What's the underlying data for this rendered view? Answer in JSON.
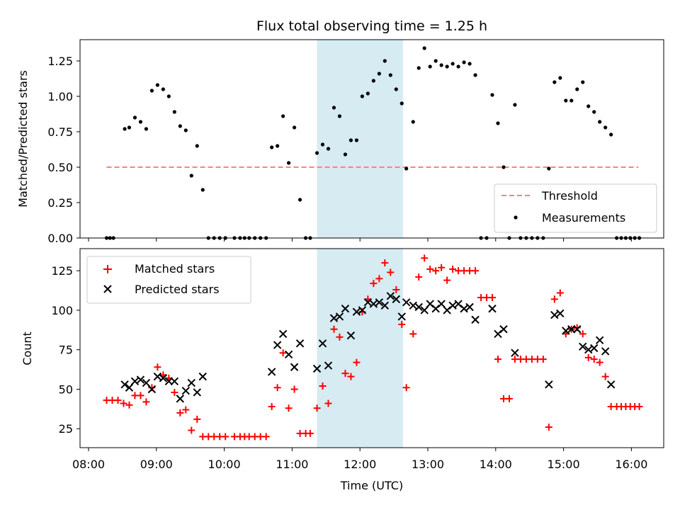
{
  "chart_data": {
    "type": "scatter",
    "title": "Flux total observing time = 1.25 h",
    "xlabel": "Time (UTC)",
    "shaded_interval": [
      "11:22",
      "12:38"
    ],
    "x_ticks": [
      "08:00",
      "09:00",
      "10:00",
      "11:00",
      "12:00",
      "13:00",
      "14:00",
      "15:00",
      "16:00"
    ],
    "top": {
      "ylabel": "Matched/Predicted stars",
      "ylim": [
        0,
        1.4
      ],
      "yticks": [
        "0.00",
        "0.25",
        "0.50",
        "0.75",
        "1.00",
        "1.25"
      ],
      "threshold": {
        "name": "Threshold",
        "value": 0.5,
        "x": [
          "08:16",
          "16:06"
        ]
      },
      "legend": [
        "Threshold",
        "Measurements"
      ],
      "legend_loc": "lower-right",
      "series": [
        {
          "name": "Measurements",
          "points": [
            [
              "08:16",
              0
            ],
            [
              "08:19",
              0
            ],
            [
              "08:22",
              0
            ],
            [
              "08:32",
              0.77
            ],
            [
              "08:36",
              0.78
            ],
            [
              "08:41",
              0.85
            ],
            [
              "08:46",
              0.82
            ],
            [
              "08:51",
              0.77
            ],
            [
              "08:56",
              1.04
            ],
            [
              "09:01",
              1.08
            ],
            [
              "09:06",
              1.05
            ],
            [
              "09:11",
              1.0
            ],
            [
              "09:16",
              0.89
            ],
            [
              "09:21",
              0.79
            ],
            [
              "09:26",
              0.76
            ],
            [
              "09:31",
              0.44
            ],
            [
              "09:36",
              0.65
            ],
            [
              "09:41",
              0.34
            ],
            [
              "09:46",
              0
            ],
            [
              "09:51",
              0
            ],
            [
              "09:56",
              0
            ],
            [
              "10:01",
              0
            ],
            [
              "10:09",
              0
            ],
            [
              "10:14",
              0
            ],
            [
              "10:18",
              0
            ],
            [
              "10:22",
              0
            ],
            [
              "10:27",
              0
            ],
            [
              "10:32",
              0
            ],
            [
              "10:37",
              0
            ],
            [
              "10:42",
              0.64
            ],
            [
              "10:47",
              0.65
            ],
            [
              "10:52",
              0.86
            ],
            [
              "10:57",
              0.53
            ],
            [
              "11:02",
              0.78
            ],
            [
              "11:07",
              0.27
            ],
            [
              "11:12",
              0
            ],
            [
              "11:16",
              0
            ],
            [
              "11:22",
              0.6
            ],
            [
              "11:27",
              0.66
            ],
            [
              "11:32",
              0.63
            ],
            [
              "11:37",
              0.92
            ],
            [
              "11:42",
              0.86
            ],
            [
              "11:47",
              0.59
            ],
            [
              "11:52",
              0.69
            ],
            [
              "11:57",
              0.69
            ],
            [
              "12:02",
              1.0
            ],
            [
              "12:07",
              1.02
            ],
            [
              "12:12",
              1.11
            ],
            [
              "12:17",
              1.16
            ],
            [
              "12:22",
              1.25
            ],
            [
              "12:27",
              1.15
            ],
            [
              "12:32",
              1.05
            ],
            [
              "12:37",
              0.95
            ],
            [
              "12:41",
              0.49
            ],
            [
              "12:47",
              0.82
            ],
            [
              "12:52",
              1.2
            ],
            [
              "12:57",
              1.34
            ],
            [
              "13:02",
              1.21
            ],
            [
              "13:07",
              1.25
            ],
            [
              "13:12",
              1.22
            ],
            [
              "13:17",
              1.21
            ],
            [
              "13:22",
              1.23
            ],
            [
              "13:27",
              1.21
            ],
            [
              "13:32",
              1.24
            ],
            [
              "13:37",
              1.23
            ],
            [
              "13:42",
              1.15
            ],
            [
              "13:47",
              0
            ],
            [
              "13:52",
              0
            ],
            [
              "13:57",
              1.01
            ],
            [
              "14:02",
              0.81
            ],
            [
              "14:07",
              0.5
            ],
            [
              "14:12",
              0
            ],
            [
              "14:17",
              0.94
            ],
            [
              "14:22",
              0
            ],
            [
              "14:27",
              0
            ],
            [
              "14:32",
              0
            ],
            [
              "14:37",
              0
            ],
            [
              "14:42",
              0
            ],
            [
              "14:47",
              0.49
            ],
            [
              "14:52",
              1.1
            ],
            [
              "14:57",
              1.13
            ],
            [
              "15:02",
              0.97
            ],
            [
              "15:07",
              0.97
            ],
            [
              "15:12",
              1.05
            ],
            [
              "15:17",
              1.1
            ],
            [
              "15:22",
              0.93
            ],
            [
              "15:27",
              0.89
            ],
            [
              "15:32",
              0.82
            ],
            [
              "15:37",
              0.78
            ],
            [
              "15:42",
              0.73
            ],
            [
              "15:47",
              0
            ],
            [
              "15:51",
              0
            ],
            [
              "15:55",
              0
            ],
            [
              "15:59",
              0
            ],
            [
              "16:03",
              0
            ],
            [
              "16:07",
              0
            ]
          ]
        }
      ]
    },
    "bottom": {
      "ylabel": "Count",
      "ylim": [
        13,
        139
      ],
      "yticks": [
        "25",
        "50",
        "75",
        "100",
        "125"
      ],
      "legend": [
        "Matched stars",
        "Predicted stars"
      ],
      "legend_loc": "upper-left",
      "series": [
        {
          "name": "Matched stars",
          "points": [
            [
              "08:16",
              43
            ],
            [
              "08:21",
              43
            ],
            [
              "08:26",
              43
            ],
            [
              "08:31",
              41
            ],
            [
              "08:36",
              40
            ],
            [
              "08:41",
              46
            ],
            [
              "08:46",
              46
            ],
            [
              "08:51",
              42
            ],
            [
              "08:56",
              51
            ],
            [
              "09:01",
              64
            ],
            [
              "09:06",
              59
            ],
            [
              "09:11",
              57
            ],
            [
              "09:16",
              48
            ],
            [
              "09:21",
              35
            ],
            [
              "09:26",
              37
            ],
            [
              "09:31",
              24
            ],
            [
              "09:36",
              31
            ],
            [
              "09:41",
              20
            ],
            [
              "09:46",
              20
            ],
            [
              "09:51",
              20
            ],
            [
              "09:56",
              20
            ],
            [
              "10:01",
              20
            ],
            [
              "10:09",
              20
            ],
            [
              "10:14",
              20
            ],
            [
              "10:18",
              20
            ],
            [
              "10:22",
              20
            ],
            [
              "10:27",
              20
            ],
            [
              "10:32",
              20
            ],
            [
              "10:37",
              20
            ],
            [
              "10:42",
              39
            ],
            [
              "10:47",
              51
            ],
            [
              "10:52",
              73
            ],
            [
              "10:57",
              38
            ],
            [
              "11:02",
              50
            ],
            [
              "11:07",
              22
            ],
            [
              "11:12",
              22
            ],
            [
              "11:16",
              22
            ],
            [
              "11:22",
              38
            ],
            [
              "11:27",
              52
            ],
            [
              "11:32",
              41
            ],
            [
              "11:37",
              88
            ],
            [
              "11:42",
              83
            ],
            [
              "11:47",
              60
            ],
            [
              "11:52",
              58
            ],
            [
              "11:57",
              67
            ],
            [
              "12:02",
              99
            ],
            [
              "12:07",
              107
            ],
            [
              "12:12",
              117
            ],
            [
              "12:17",
              120
            ],
            [
              "12:22",
              130
            ],
            [
              "12:27",
              124
            ],
            [
              "12:32",
              113
            ],
            [
              "12:37",
              91
            ],
            [
              "12:41",
              51
            ],
            [
              "12:47",
              85
            ],
            [
              "12:52",
              121
            ],
            [
              "12:57",
              133
            ],
            [
              "13:02",
              126
            ],
            [
              "13:07",
              125
            ],
            [
              "13:12",
              127
            ],
            [
              "13:17",
              119
            ],
            [
              "13:22",
              126
            ],
            [
              "13:27",
              125
            ],
            [
              "13:32",
              125
            ],
            [
              "13:37",
              125
            ],
            [
              "13:42",
              125
            ],
            [
              "13:47",
              108
            ],
            [
              "13:52",
              108
            ],
            [
              "13:57",
              108
            ],
            [
              "14:02",
              69
            ],
            [
              "14:07",
              44
            ],
            [
              "14:12",
              44
            ],
            [
              "14:17",
              69
            ],
            [
              "14:22",
              69
            ],
            [
              "14:27",
              69
            ],
            [
              "14:32",
              69
            ],
            [
              "14:37",
              69
            ],
            [
              "14:42",
              69
            ],
            [
              "14:47",
              26
            ],
            [
              "14:52",
              107
            ],
            [
              "14:57",
              111
            ],
            [
              "15:02",
              85
            ],
            [
              "15:07",
              88
            ],
            [
              "15:12",
              89
            ],
            [
              "15:17",
              85
            ],
            [
              "15:22",
              70
            ],
            [
              "15:27",
              69
            ],
            [
              "15:32",
              67
            ],
            [
              "15:37",
              58
            ],
            [
              "15:42",
              39
            ],
            [
              "15:47",
              39
            ],
            [
              "15:51",
              39
            ],
            [
              "15:55",
              39
            ],
            [
              "15:59",
              39
            ],
            [
              "16:03",
              39
            ],
            [
              "16:07",
              39
            ]
          ]
        },
        {
          "name": "Predicted stars",
          "points": [
            [
              "08:32",
              53
            ],
            [
              "08:36",
              51
            ],
            [
              "08:41",
              55
            ],
            [
              "08:46",
              56
            ],
            [
              "08:51",
              54
            ],
            [
              "08:56",
              50
            ],
            [
              "09:01",
              58
            ],
            [
              "09:06",
              57
            ],
            [
              "09:11",
              55
            ],
            [
              "09:16",
              55
            ],
            [
              "09:21",
              44
            ],
            [
              "09:26",
              49
            ],
            [
              "09:31",
              54
            ],
            [
              "09:36",
              48
            ],
            [
              "09:41",
              58
            ],
            [
              "10:42",
              61
            ],
            [
              "10:47",
              78
            ],
            [
              "10:52",
              85
            ],
            [
              "10:57",
              72
            ],
            [
              "11:02",
              64
            ],
            [
              "11:07",
              79
            ],
            [
              "11:22",
              63
            ],
            [
              "11:27",
              79
            ],
            [
              "11:32",
              65
            ],
            [
              "11:37",
              95
            ],
            [
              "11:42",
              96
            ],
            [
              "11:47",
              101
            ],
            [
              "11:52",
              84
            ],
            [
              "11:57",
              99
            ],
            [
              "12:02",
              100
            ],
            [
              "12:07",
              105
            ],
            [
              "12:12",
              104
            ],
            [
              "12:17",
              105
            ],
            [
              "12:22",
              103
            ],
            [
              "12:27",
              109
            ],
            [
              "12:32",
              107
            ],
            [
              "12:37",
              96
            ],
            [
              "12:41",
              105
            ],
            [
              "12:47",
              103
            ],
            [
              "12:52",
              102
            ],
            [
              "12:57",
              100
            ],
            [
              "13:02",
              104
            ],
            [
              "13:07",
              101
            ],
            [
              "13:12",
              104
            ],
            [
              "13:17",
              100
            ],
            [
              "13:22",
              103
            ],
            [
              "13:27",
              104
            ],
            [
              "13:32",
              101
            ],
            [
              "13:37",
              102
            ],
            [
              "13:42",
              94
            ],
            [
              "13:57",
              101
            ],
            [
              "14:02",
              85
            ],
            [
              "14:07",
              88
            ],
            [
              "14:17",
              73
            ],
            [
              "14:47",
              53
            ],
            [
              "14:52",
              97
            ],
            [
              "14:57",
              98
            ],
            [
              "15:02",
              87
            ],
            [
              "15:07",
              88
            ],
            [
              "15:12",
              88
            ],
            [
              "15:17",
              77
            ],
            [
              "15:22",
              75
            ],
            [
              "15:27",
              76
            ],
            [
              "15:32",
              81
            ],
            [
              "15:37",
              74
            ],
            [
              "15:42",
              53
            ]
          ]
        }
      ]
    }
  }
}
